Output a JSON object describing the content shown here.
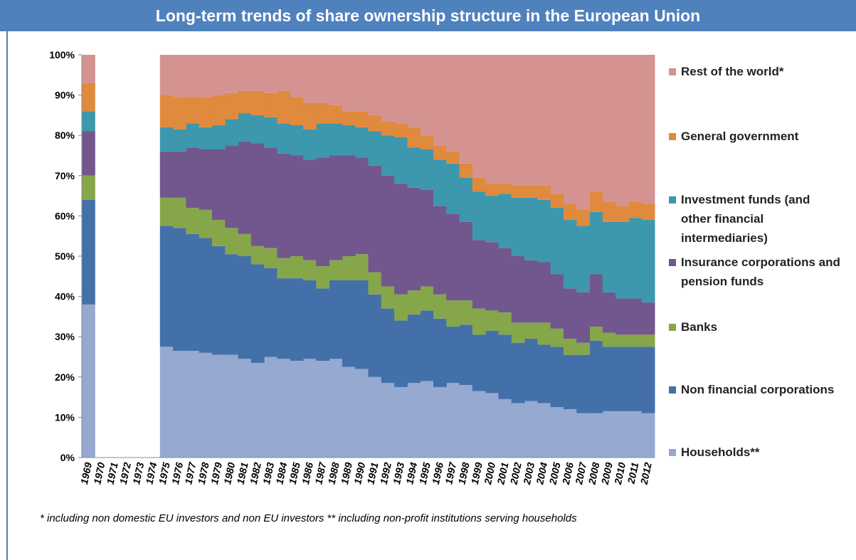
{
  "chart_data": {
    "type": "stacked-step-area",
    "title": "Long-term trends of share ownership structure in the European Union",
    "footnote": "* including  non domestic  EU investors and non EU investors ** including  non-profit institutions serving households",
    "categories": [
      "1969",
      "1970",
      "1971",
      "1972",
      "1973",
      "1974",
      "1975",
      "1976",
      "1977",
      "1978",
      "1979",
      "1980",
      "1981",
      "1982",
      "1983",
      "1984",
      "1985",
      "1986",
      "1987",
      "1988",
      "1989",
      "1990",
      "1991",
      "1992",
      "1993",
      "1994",
      "1995",
      "1996",
      "1997",
      "1998",
      "1999",
      "2000",
      "2001",
      "2002",
      "2003",
      "2004",
      "2005",
      "2006",
      "2007",
      "2008",
      "2009",
      "2010",
      "2011",
      "2012"
    ],
    "ylim": [
      0,
      100
    ],
    "yticks": [
      {
        "value": 0,
        "label": "0%"
      },
      {
        "value": 10,
        "label": "10%"
      },
      {
        "value": 20,
        "label": "20%"
      },
      {
        "value": 30,
        "label": "30%"
      },
      {
        "value": 40,
        "label": "40%"
      },
      {
        "value": 50,
        "label": "50%"
      },
      {
        "value": 60,
        "label": "60%"
      },
      {
        "value": 70,
        "label": "70%"
      },
      {
        "value": 80,
        "label": "80%"
      },
      {
        "value": 90,
        "label": "90%"
      },
      {
        "value": 100,
        "label": "100%"
      }
    ],
    "series": [
      {
        "name": "Households**",
        "color": "#95a9d1",
        "values": [
          38,
          null,
          null,
          null,
          null,
          null,
          27.5,
          26.5,
          26.5,
          26,
          25.5,
          25.5,
          24.5,
          23.5,
          25,
          24.5,
          24,
          24.5,
          24,
          24.5,
          22.5,
          22,
          20,
          18.5,
          17.5,
          18.5,
          19,
          17.5,
          18.5,
          18,
          16.5,
          16,
          14.5,
          13.5,
          14,
          13.5,
          12.5,
          12,
          11,
          11,
          11.5,
          11.5,
          11.5,
          11
        ]
      },
      {
        "name": "Non financial corporations",
        "color": "#4470aa",
        "values": [
          26,
          null,
          null,
          null,
          null,
          null,
          30,
          30.5,
          29,
          28.5,
          27,
          25,
          25.5,
          24.5,
          22,
          20,
          20.5,
          19.5,
          18,
          19.5,
          21.5,
          22,
          20.5,
          18.5,
          16.5,
          17,
          17.5,
          17,
          14,
          15,
          14,
          15.5,
          16,
          15,
          15.5,
          14.5,
          15,
          13.5,
          14.5,
          18,
          16,
          16,
          16,
          16.5
        ]
      },
      {
        "name": "Banks",
        "color": "#86a64a",
        "values": [
          6,
          null,
          null,
          null,
          null,
          null,
          7,
          7.5,
          6.5,
          7,
          6.5,
          6.5,
          5.5,
          4.5,
          5,
          5,
          5.5,
          5,
          5.5,
          5,
          6,
          6.5,
          5.5,
          5.5,
          6.5,
          6,
          6,
          6,
          6.5,
          6,
          6.5,
          5,
          5.5,
          5,
          4,
          5.5,
          4.5,
          4,
          3,
          3.5,
          3.5,
          3,
          3,
          3
        ]
      },
      {
        "name": "Insurance corporations and pension funds",
        "color": "#72578e",
        "values": [
          11,
          null,
          null,
          null,
          null,
          null,
          11.5,
          11.5,
          15,
          15,
          17.5,
          20.5,
          23,
          25.5,
          25,
          26,
          25,
          25,
          27,
          26,
          25,
          24,
          26.5,
          27.5,
          27.5,
          25.5,
          24,
          22,
          21.5,
          19.5,
          17,
          17,
          16,
          16.5,
          15.5,
          15,
          13.5,
          12.5,
          12.5,
          13,
          10,
          9,
          9,
          8
        ]
      },
      {
        "name": "Investment funds (and other financial intermediaries)",
        "color": "#3d97ad",
        "values": [
          5,
          null,
          null,
          null,
          null,
          null,
          6,
          5.5,
          6,
          5.5,
          6,
          6.5,
          7,
          7,
          7.5,
          7.5,
          7.5,
          7.5,
          8.5,
          8,
          7.5,
          7.5,
          8.5,
          10,
          11.5,
          10,
          10,
          11.5,
          12.5,
          11,
          12,
          11.5,
          13.5,
          14.5,
          15.5,
          15.5,
          16.5,
          17,
          16.5,
          15.5,
          17.5,
          19,
          20,
          20.5
        ]
      },
      {
        "name": "General government",
        "color": "#df8a3d",
        "values": [
          7,
          null,
          null,
          null,
          null,
          null,
          8,
          8,
          6.5,
          7.5,
          7.5,
          6.5,
          5.5,
          6,
          6,
          8,
          7,
          6.5,
          5,
          4.5,
          3.5,
          4,
          4,
          3.5,
          3.5,
          5,
          3.5,
          3.5,
          3,
          3.5,
          3.5,
          3,
          2.5,
          3,
          3,
          3.5,
          3.5,
          4,
          4,
          5,
          5,
          4,
          4,
          4
        ]
      },
      {
        "name": "Rest of the world*",
        "color": "#d49390",
        "values": [
          7,
          null,
          null,
          null,
          null,
          null,
          10,
          10.5,
          10.5,
          10.5,
          10,
          9.5,
          9,
          9,
          9.5,
          9,
          10.5,
          12,
          12,
          12.5,
          14,
          14,
          15,
          16.5,
          17,
          18,
          20,
          22.5,
          24,
          27,
          30.5,
          32,
          32,
          32.5,
          32.5,
          32.5,
          34.5,
          37,
          38.5,
          34,
          36.5,
          37.5,
          36.5,
          37
        ]
      }
    ]
  }
}
